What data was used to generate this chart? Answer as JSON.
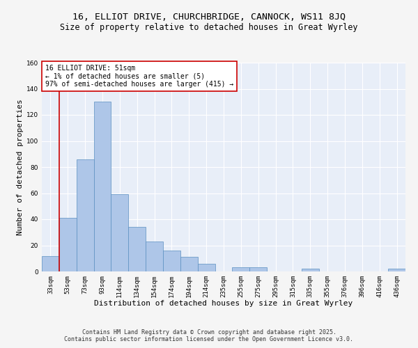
{
  "title": "16, ELLIOT DRIVE, CHURCHBRIDGE, CANNOCK, WS11 8JQ",
  "subtitle": "Size of property relative to detached houses in Great Wyrley",
  "xlabel": "Distribution of detached houses by size in Great Wyrley",
  "ylabel": "Number of detached properties",
  "categories": [
    "33sqm",
    "53sqm",
    "73sqm",
    "93sqm",
    "114sqm",
    "134sqm",
    "154sqm",
    "174sqm",
    "194sqm",
    "214sqm",
    "235sqm",
    "255sqm",
    "275sqm",
    "295sqm",
    "315sqm",
    "335sqm",
    "355sqm",
    "376sqm",
    "396sqm",
    "416sqm",
    "436sqm"
  ],
  "values": [
    12,
    41,
    86,
    130,
    59,
    34,
    23,
    16,
    11,
    6,
    0,
    3,
    3,
    0,
    0,
    2,
    0,
    0,
    0,
    0,
    2
  ],
  "bar_color": "#aec6e8",
  "bar_edge_color": "#5a8fc0",
  "vline_color": "#cc0000",
  "annotation_text": "16 ELLIOT DRIVE: 51sqm\n← 1% of detached houses are smaller (5)\n97% of semi-detached houses are larger (415) →",
  "annotation_box_color": "#ffffff",
  "annotation_box_edge": "#cc0000",
  "ylim": [
    0,
    160
  ],
  "yticks": [
    0,
    20,
    40,
    60,
    80,
    100,
    120,
    140,
    160
  ],
  "footer_text": "Contains HM Land Registry data © Crown copyright and database right 2025.\nContains public sector information licensed under the Open Government Licence v3.0.",
  "bg_color": "#e8eef8",
  "grid_color": "#ffffff",
  "title_fontsize": 9.5,
  "subtitle_fontsize": 8.5,
  "xlabel_fontsize": 8,
  "ylabel_fontsize": 8,
  "tick_fontsize": 6.5,
  "annotation_fontsize": 7,
  "footer_fontsize": 6
}
